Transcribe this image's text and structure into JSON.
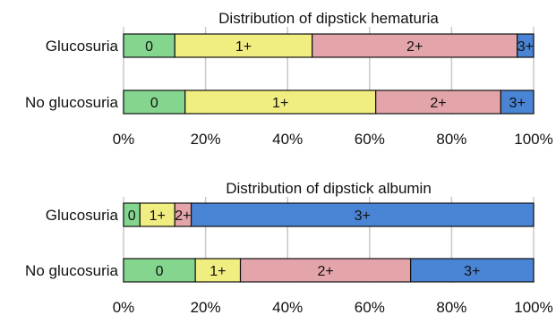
{
  "chart_data": [
    {
      "type": "bar",
      "orientation": "horizontal",
      "stacked": true,
      "title": "Distribution of dipstick hematuria",
      "categories": [
        "Glucosuria",
        "No glucosuria"
      ],
      "series": [
        {
          "name": "0",
          "values": [
            12.5,
            15
          ],
          "color": "#84d68e"
        },
        {
          "name": "1+",
          "values": [
            33.5,
            46.5
          ],
          "color": "#f0ee80"
        },
        {
          "name": "2+",
          "values": [
            50,
            30.5
          ],
          "color": "#e3a4aa"
        },
        {
          "name": "3+",
          "values": [
            4,
            8
          ],
          "color": "#4a84d4"
        }
      ],
      "xlim": [
        0,
        100
      ],
      "xticks": [
        "0%",
        "20%",
        "40%",
        "60%",
        "80%",
        "100%"
      ],
      "grid": "vertical"
    },
    {
      "type": "bar",
      "orientation": "horizontal",
      "stacked": true,
      "title": "Distribution of dipstick albumin",
      "categories": [
        "Glucosuria",
        "No glucosuria"
      ],
      "series": [
        {
          "name": "0",
          "values": [
            4,
            17.5
          ],
          "color": "#84d68e"
        },
        {
          "name": "1+",
          "values": [
            8.5,
            11
          ],
          "color": "#f0ee80"
        },
        {
          "name": "2+",
          "values": [
            4,
            41.5
          ],
          "color": "#e3a4aa"
        },
        {
          "name": "3+",
          "values": [
            83.5,
            30
          ],
          "color": "#4a84d4"
        }
      ],
      "xlim": [
        0,
        100
      ],
      "xticks": [
        "0%",
        "20%",
        "40%",
        "60%",
        "80%",
        "100%"
      ],
      "grid": "vertical"
    }
  ]
}
